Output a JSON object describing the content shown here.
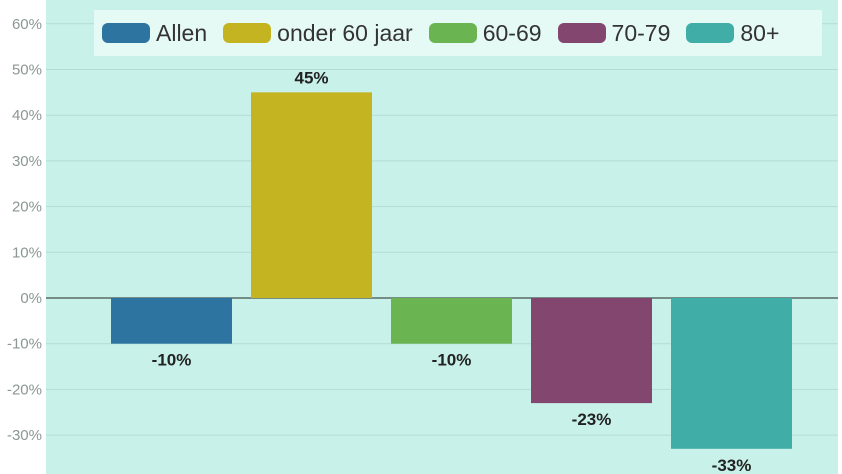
{
  "chart_data": {
    "type": "bar",
    "categories": [
      "Allen",
      "onder 60 jaar",
      "60-69",
      "70-79",
      "80+"
    ],
    "values": [
      -10,
      45,
      -10,
      -23,
      -33
    ],
    "value_labels": [
      "-10%",
      "45%",
      "-10%",
      "-23%",
      "-33%"
    ],
    "colors": [
      "#2e74a0",
      "#c4b422",
      "#6ab552",
      "#82466f",
      "#40ada7"
    ],
    "ylim": [
      -38,
      62
    ],
    "yticks": [
      60,
      50,
      40,
      30,
      20,
      10,
      0,
      -10,
      -20,
      -30
    ],
    "ytick_labels": [
      "60%",
      "50%",
      "40%",
      "30%",
      "20%",
      "10%",
      "0%",
      "-10%",
      "-20%",
      "-30%"
    ],
    "legend_position": "top",
    "grid": true,
    "background": "#c8f2e9"
  },
  "legend": {
    "items": [
      {
        "label": "Allen",
        "color": "#2e74a0"
      },
      {
        "label": "onder 60 jaar",
        "color": "#c4b422"
      },
      {
        "label": "60-69",
        "color": "#6ab552"
      },
      {
        "label": "70-79",
        "color": "#82466f"
      },
      {
        "label": "80+",
        "color": "#40ada7"
      }
    ]
  }
}
